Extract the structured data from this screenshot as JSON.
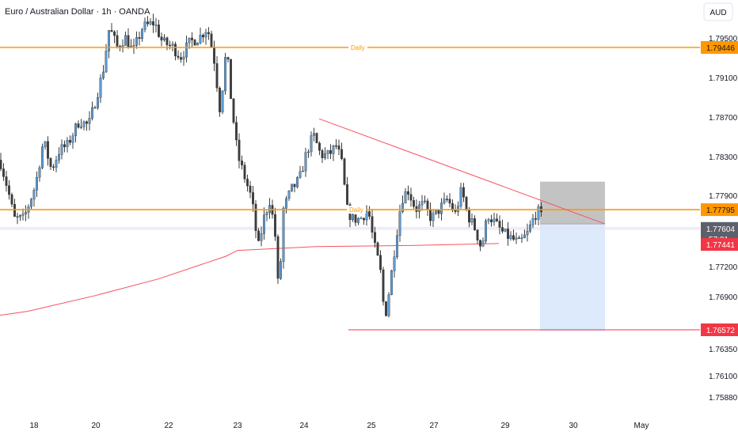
{
  "chart_data": {
    "type": "candlestick",
    "title": "Euro / Australian Dollar · 1h · OANDA",
    "currency_button": "AUD",
    "x_tick_labels": [
      "18",
      "20",
      "22",
      "23",
      "24",
      "25",
      "27",
      "29",
      "30",
      "May"
    ],
    "y_tick_labels": [
      "1.79500",
      "1.79100",
      "1.78700",
      "1.78300",
      "1.77900",
      "1.77200",
      "1.76900",
      "1.76350",
      "1.76100",
      "1.75880"
    ],
    "ylim": [
      1.7588,
      1.7985
    ],
    "grid": false,
    "legend": "none",
    "horizontal_levels": [
      {
        "value": 1.79446,
        "label": "1.79446",
        "annotation": "Daily",
        "color": "#ff9800"
      },
      {
        "value": 1.77795,
        "label": "1.77795",
        "annotation": "Daily",
        "color": "#ff9800"
      },
      {
        "value": 1.76572,
        "label": "1.76572",
        "annotation": "",
        "color": "#f23645"
      }
    ],
    "current_price": {
      "value": 1.77604,
      "label": "1.77604",
      "countdown": "57:01",
      "color": "#5d606b"
    },
    "marker_price": {
      "value": 1.77441,
      "label": "1.77441",
      "color": "#f23645"
    },
    "moving_average": {
      "color": "#f7525f",
      "points": [
        [
          0,
          1.7672
        ],
        [
          35,
          1.7676
        ],
        [
          120,
          1.7692
        ],
        [
          200,
          1.7709
        ],
        [
          285,
          1.7732
        ],
        [
          300,
          1.7738
        ],
        [
          400,
          1.7742
        ],
        [
          520,
          1.7743
        ],
        [
          630,
          1.7745
        ]
      ]
    },
    "trendline": {
      "from": [
        403,
        1.7872
      ],
      "to": [
        764,
        1.7765
      ],
      "color": "#f7525f"
    },
    "short_position": {
      "entry": 1.7765,
      "stop": 1.7808,
      "target": 1.7656,
      "x_range": [
        682,
        764
      ],
      "stop_color": "#bdbdbd",
      "target_color": "#d6e6fb"
    },
    "colors": {
      "up": "#5b9bd5",
      "down": "#3d3d3d",
      "wick": "#3d3d3d",
      "axis_text": "#131722"
    }
  }
}
